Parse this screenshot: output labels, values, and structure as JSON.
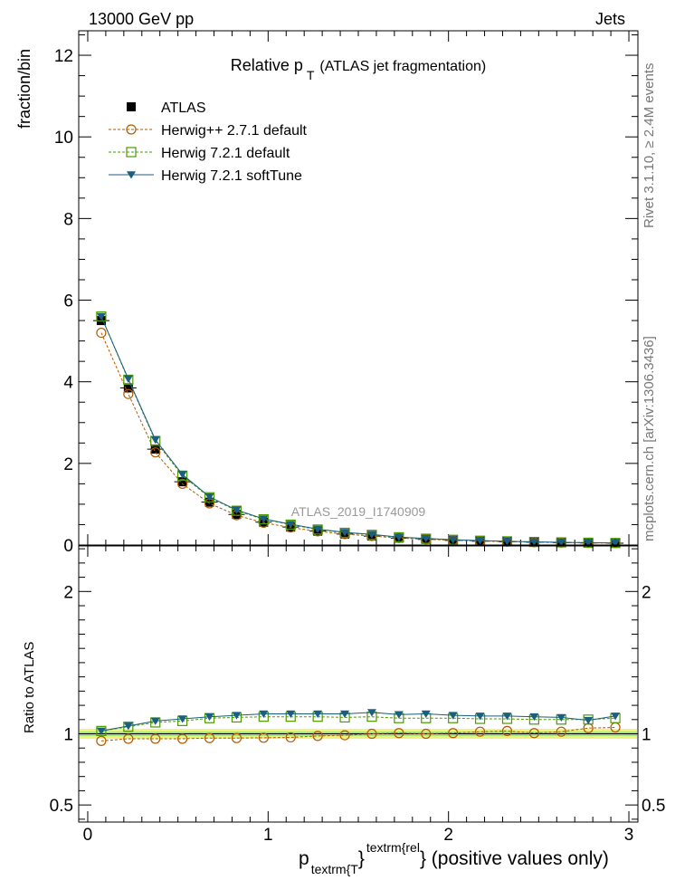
{
  "header": {
    "left": "13000 GeV pp",
    "right": "Jets"
  },
  "side_labels": {
    "rivet": "Rivet 3.1.10, ≥ 2.4M events",
    "mcplots": "mcplots.cern.ch [arXiv:1306.3436]"
  },
  "chart_data": [
    {
      "type": "line",
      "title_main": "Relative p",
      "title_sub": "T",
      "title_rest": "(ATLAS jet fragmentation)",
      "watermark": "ATLAS_2019_I1740909",
      "ylabel": "fraction/bin",
      "xlim": [
        -0.05,
        3.05
      ],
      "ylim": [
        0,
        12.6
      ],
      "yticks": [
        0,
        2,
        4,
        6,
        8,
        10,
        12
      ],
      "ytick_labels": [
        "0",
        "2",
        "4",
        "6",
        "8",
        "10",
        "12"
      ],
      "x": [
        0.075,
        0.225,
        0.375,
        0.525,
        0.675,
        0.825,
        0.975,
        1.125,
        1.275,
        1.425,
        1.575,
        1.725,
        1.875,
        2.025,
        2.175,
        2.325,
        2.475,
        2.625,
        2.775,
        2.925
      ],
      "series": [
        {
          "name": "ATLAS",
          "color": "#000000",
          "marker": "square-filled",
          "values": [
            5.5,
            3.85,
            2.35,
            1.55,
            1.05,
            0.75,
            0.56,
            0.44,
            0.34,
            0.27,
            0.22,
            0.17,
            0.14,
            0.115,
            0.095,
            0.08,
            0.068,
            0.058,
            0.05,
            0.045
          ]
        },
        {
          "name": "Herwig++ 2.7.1 default",
          "color": "#b35900",
          "marker": "circle-open",
          "line": "dashed",
          "values": [
            5.2,
            3.7,
            2.27,
            1.5,
            1.02,
            0.73,
            0.545,
            0.43,
            0.335,
            0.268,
            0.22,
            0.172,
            0.14,
            0.116,
            0.097,
            0.082,
            0.068,
            0.059,
            0.052,
            0.047
          ]
        },
        {
          "name": "Herwig 7.2.1 default",
          "color": "#4c9900",
          "marker": "square-open",
          "line": "dashed",
          "values": [
            5.6,
            4.05,
            2.55,
            1.7,
            1.17,
            0.84,
            0.63,
            0.5,
            0.38,
            0.3,
            0.25,
            0.19,
            0.155,
            0.128,
            0.106,
            0.09,
            0.076,
            0.065,
            0.057,
            0.05
          ]
        },
        {
          "name": "Herwig 7.2.1 softTune",
          "color": "#1a5e80",
          "marker": "triangle-down",
          "line": "solid",
          "values": [
            5.6,
            4.07,
            2.58,
            1.73,
            1.18,
            0.86,
            0.64,
            0.51,
            0.39,
            0.31,
            0.26,
            0.195,
            0.16,
            0.13,
            0.108,
            0.091,
            0.077,
            0.066,
            0.057,
            0.052
          ]
        }
      ]
    },
    {
      "type": "line",
      "ylabel": "Ratio to ATLAS",
      "xlabel_main": "p",
      "xlabel_sub": "textrm{T",
      "xlabel_mid": "}",
      "xlabel_sup": "textrm{rel",
      "xlabel_rest": "} (positive values only)",
      "xlim": [
        -0.05,
        3.05
      ],
      "ylim": [
        0.38,
        2.32
      ],
      "xticks": [
        0,
        1,
        2,
        3
      ],
      "xtick_labels": [
        "0",
        "1",
        "2",
        "3"
      ],
      "yticks": [
        0.5,
        1,
        2
      ],
      "ytick_labels": [
        "0.5",
        "1",
        "2"
      ],
      "x": [
        0.075,
        0.225,
        0.375,
        0.525,
        0.675,
        0.825,
        0.975,
        1.125,
        1.275,
        1.425,
        1.575,
        1.725,
        1.875,
        2.025,
        2.175,
        2.325,
        2.475,
        2.625,
        2.775,
        2.925
      ],
      "band_inner": 0.015,
      "band_outer": 0.035,
      "series": [
        {
          "name": "Herwig++ 2.7.1 default",
          "color": "#b35900",
          "marker": "circle-open",
          "line": "dashed",
          "values": [
            0.95,
            0.965,
            0.965,
            0.965,
            0.97,
            0.97,
            0.972,
            0.975,
            0.985,
            0.99,
            1.0,
            1.005,
            1.0,
            1.005,
            1.015,
            1.02,
            1.005,
            1.015,
            1.04,
            1.045
          ]
        },
        {
          "name": "Herwig 7.2.1 default",
          "color": "#4c9900",
          "marker": "square-open",
          "line": "dashed",
          "values": [
            1.02,
            1.05,
            1.08,
            1.09,
            1.11,
            1.115,
            1.12,
            1.12,
            1.12,
            1.115,
            1.12,
            1.11,
            1.11,
            1.11,
            1.105,
            1.105,
            1.1,
            1.1,
            1.1,
            1.11
          ]
        },
        {
          "name": "Herwig 7.2.1 softTune",
          "color": "#1a5e80",
          "marker": "triangle-down",
          "line": "solid",
          "values": [
            1.02,
            1.055,
            1.09,
            1.105,
            1.12,
            1.13,
            1.14,
            1.14,
            1.14,
            1.14,
            1.15,
            1.135,
            1.14,
            1.13,
            1.125,
            1.125,
            1.12,
            1.115,
            1.095,
            1.125
          ]
        }
      ]
    }
  ]
}
